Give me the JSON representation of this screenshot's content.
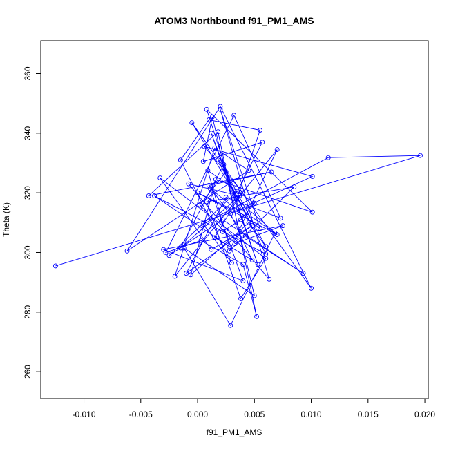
{
  "chart_data": {
    "type": "line",
    "title": "ATOM3 Northbound f91_PM1_AMS",
    "xlabel": "f91_PM1_AMS",
    "ylabel": "Theta (K)",
    "xlim": [
      -0.0138,
      0.0203
    ],
    "ylim": [
      251,
      371
    ],
    "x_ticks": [
      -0.01,
      -0.005,
      0.0,
      0.005,
      0.01,
      0.015,
      0.02
    ],
    "x_tick_labels": [
      "-0.010",
      "-0.005",
      "0.000",
      "0.005",
      "0.010",
      "0.015",
      "0.020"
    ],
    "y_ticks": [
      260,
      280,
      300,
      320,
      340,
      360
    ],
    "y_tick_labels": [
      "260",
      "280",
      "300",
      "320",
      "340",
      "360"
    ],
    "line_color": "#0000ff",
    "marker": "open-circle",
    "grid": false,
    "series": [
      {
        "x": [
          -0.0125,
          0.0196,
          0.0115,
          0.0005,
          0.003,
          -0.0015,
          0.001,
          0.0055,
          0.0035,
          -0.0005,
          0.01,
          0.002,
          -0.0062,
          0.0045,
          0.0015,
          -0.002,
          0.007,
          0.0028,
          0.0085,
          0.0008,
          0.0038,
          0.006,
          -0.0033,
          0.0012,
          0.0048,
          -0.001,
          0.0025,
          0.0073,
          0.0032,
          -0.0028,
          0.0003,
          0.004,
          0.0052,
          0.0018,
          -0.0043,
          0.0065,
          0.001,
          0.0042,
          0.0093,
          0.0022,
          -0.0025,
          0.0035,
          0.0057,
          0.0005,
          0.0013,
          0.005,
          -0.0012,
          0.0029,
          0.0068,
          0.0036,
          0.0008,
          0.0101,
          0.0016,
          -0.0006,
          0.0045,
          0.006,
          0.0025,
          0.0002,
          0.0033,
          0.0075,
          -0.003,
          0.004,
          0.0011,
          0.0055,
          0.002,
          0.0063,
          -0.0008,
          0.0037,
          0.0015,
          0.0048,
          0.0029,
          0.0101,
          0.0006,
          0.004,
          -0.0015,
          0.0023,
          0.0053,
          0.0012,
          0.0034,
          0.007,
          0.0,
          0.0044,
          0.0018,
          0.006,
          -0.0038,
          0.0028,
          0.0009,
          0.005,
          0.0038,
          0.0022
        ],
        "y": [
          295.5,
          332.5,
          331.8,
          309.5,
          296.5,
          331.0,
          344.5,
          341.0,
          318.5,
          343.5,
          288.0,
          349.0,
          300.5,
          327.5,
          335.0,
          292.0,
          334.5,
          300.5,
          322.0,
          317.0,
          284.5,
          298.0,
          325.0,
          301.0,
          309.0,
          293.0,
          318.5,
          311.5,
          346.0,
          300.0,
          304.0,
          296.0,
          278.5,
          340.5,
          319.0,
          327.0,
          322.5,
          305.5,
          293.0,
          311.0,
          299.0,
          320.5,
          337.0,
          330.5,
          345.5,
          285.5,
          301.5,
          275.5,
          306.5,
          315.0,
          348.0,
          313.5,
          324.5,
          292.5,
          310.0,
          302.0,
          327.0,
          316.0,
          303.0,
          309.0,
          301.0,
          290.5,
          321.5,
          308.0,
          348.0,
          291.0,
          323.0,
          319.0,
          305.0,
          297.5,
          313.0,
          325.5,
          335.5,
          320.0,
          301.5,
          329.5,
          296.0,
          340.0,
          318.0,
          306.0,
          320.0,
          312.0,
          331.0,
          299.5,
          319.0,
          302.0,
          327.5,
          316.5,
          311.0,
          307.0
        ]
      }
    ]
  }
}
